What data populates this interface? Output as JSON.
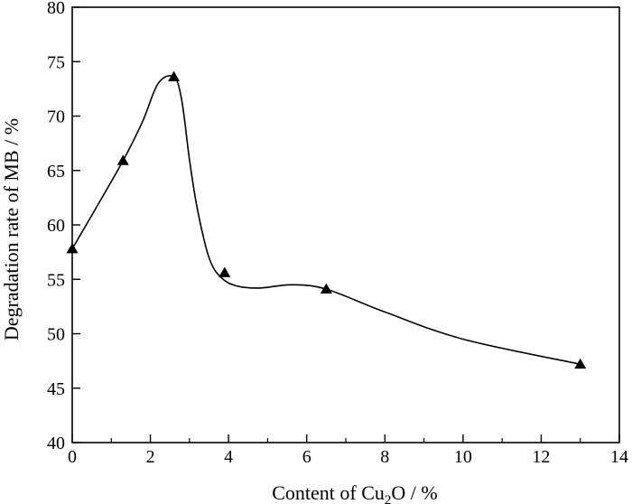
{
  "chart_data": {
    "type": "line",
    "title": "",
    "xlabel": "Content of Cu2O / %",
    "xlabel_parts": {
      "prefix": "Content of Cu",
      "subscript": "2",
      "suffix": "O / %"
    },
    "ylabel": "Degradation rate of MB / %",
    "xlim": [
      0,
      14
    ],
    "ylim": [
      40,
      80
    ],
    "xticks": [
      0,
      2,
      4,
      6,
      8,
      10,
      12,
      14
    ],
    "yticks": [
      40,
      45,
      50,
      55,
      60,
      65,
      70,
      75,
      80
    ],
    "grid": false,
    "legend": "none",
    "marker": "triangle",
    "series": [
      {
        "x": [
          0,
          1.3,
          2.6,
          3.9,
          6.5,
          13.0
        ],
        "y": [
          57.8,
          65.9,
          73.6,
          55.6,
          54.1,
          47.2
        ]
      }
    ],
    "smooth_curve": {
      "x": [
        0,
        0.6,
        1.3,
        1.8,
        2.2,
        2.6,
        2.8,
        3.0,
        3.2,
        3.5,
        3.8,
        4.2,
        4.8,
        5.6,
        6.5,
        8.0,
        10.0,
        13.0
      ],
      "y": [
        57.8,
        61.5,
        65.9,
        69.5,
        73.0,
        73.6,
        71.5,
        66.0,
        61.5,
        57.0,
        55.2,
        54.4,
        54.2,
        54.5,
        54.1,
        52.0,
        49.5,
        47.2
      ]
    },
    "colors": {
      "line": "#000000",
      "marker": "#000000",
      "axis": "#000000"
    }
  }
}
